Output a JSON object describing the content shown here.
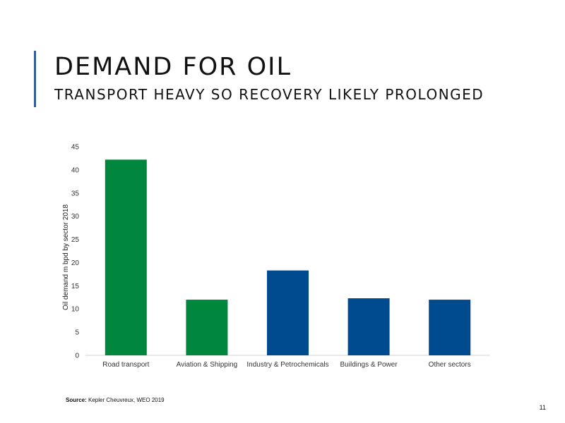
{
  "slide": {
    "title": "DEMAND FOR OIL",
    "subtitle": "TRANSPORT HEAVY SO RECOVERY LIKELY PROLONGED",
    "source_label": "Source:",
    "source_text": " Kepler Cheuvreux, WEO 2019",
    "page_number": "11"
  },
  "colors": {
    "green": "#00873e",
    "blue": "#004a8f",
    "axis": "#d0d0d0",
    "accent": "#2f5f9e"
  },
  "chart_data": {
    "type": "bar",
    "categories": [
      "Road transport",
      "Aviation & Shipping",
      "Industry & Petrochemicals",
      "Buildings & Power",
      "Other sectors"
    ],
    "values": [
      42.2,
      12,
      18.3,
      12.3,
      12
    ],
    "bar_colors": [
      "#00873e",
      "#00873e",
      "#004a8f",
      "#004a8f",
      "#004a8f"
    ],
    "ylabel": "Oil demand m bpd by sector 2018",
    "xlabel": "",
    "ylim": [
      0,
      45
    ],
    "yticks": [
      0,
      5,
      10,
      15,
      20,
      25,
      30,
      35,
      40,
      45
    ],
    "grid": false
  }
}
